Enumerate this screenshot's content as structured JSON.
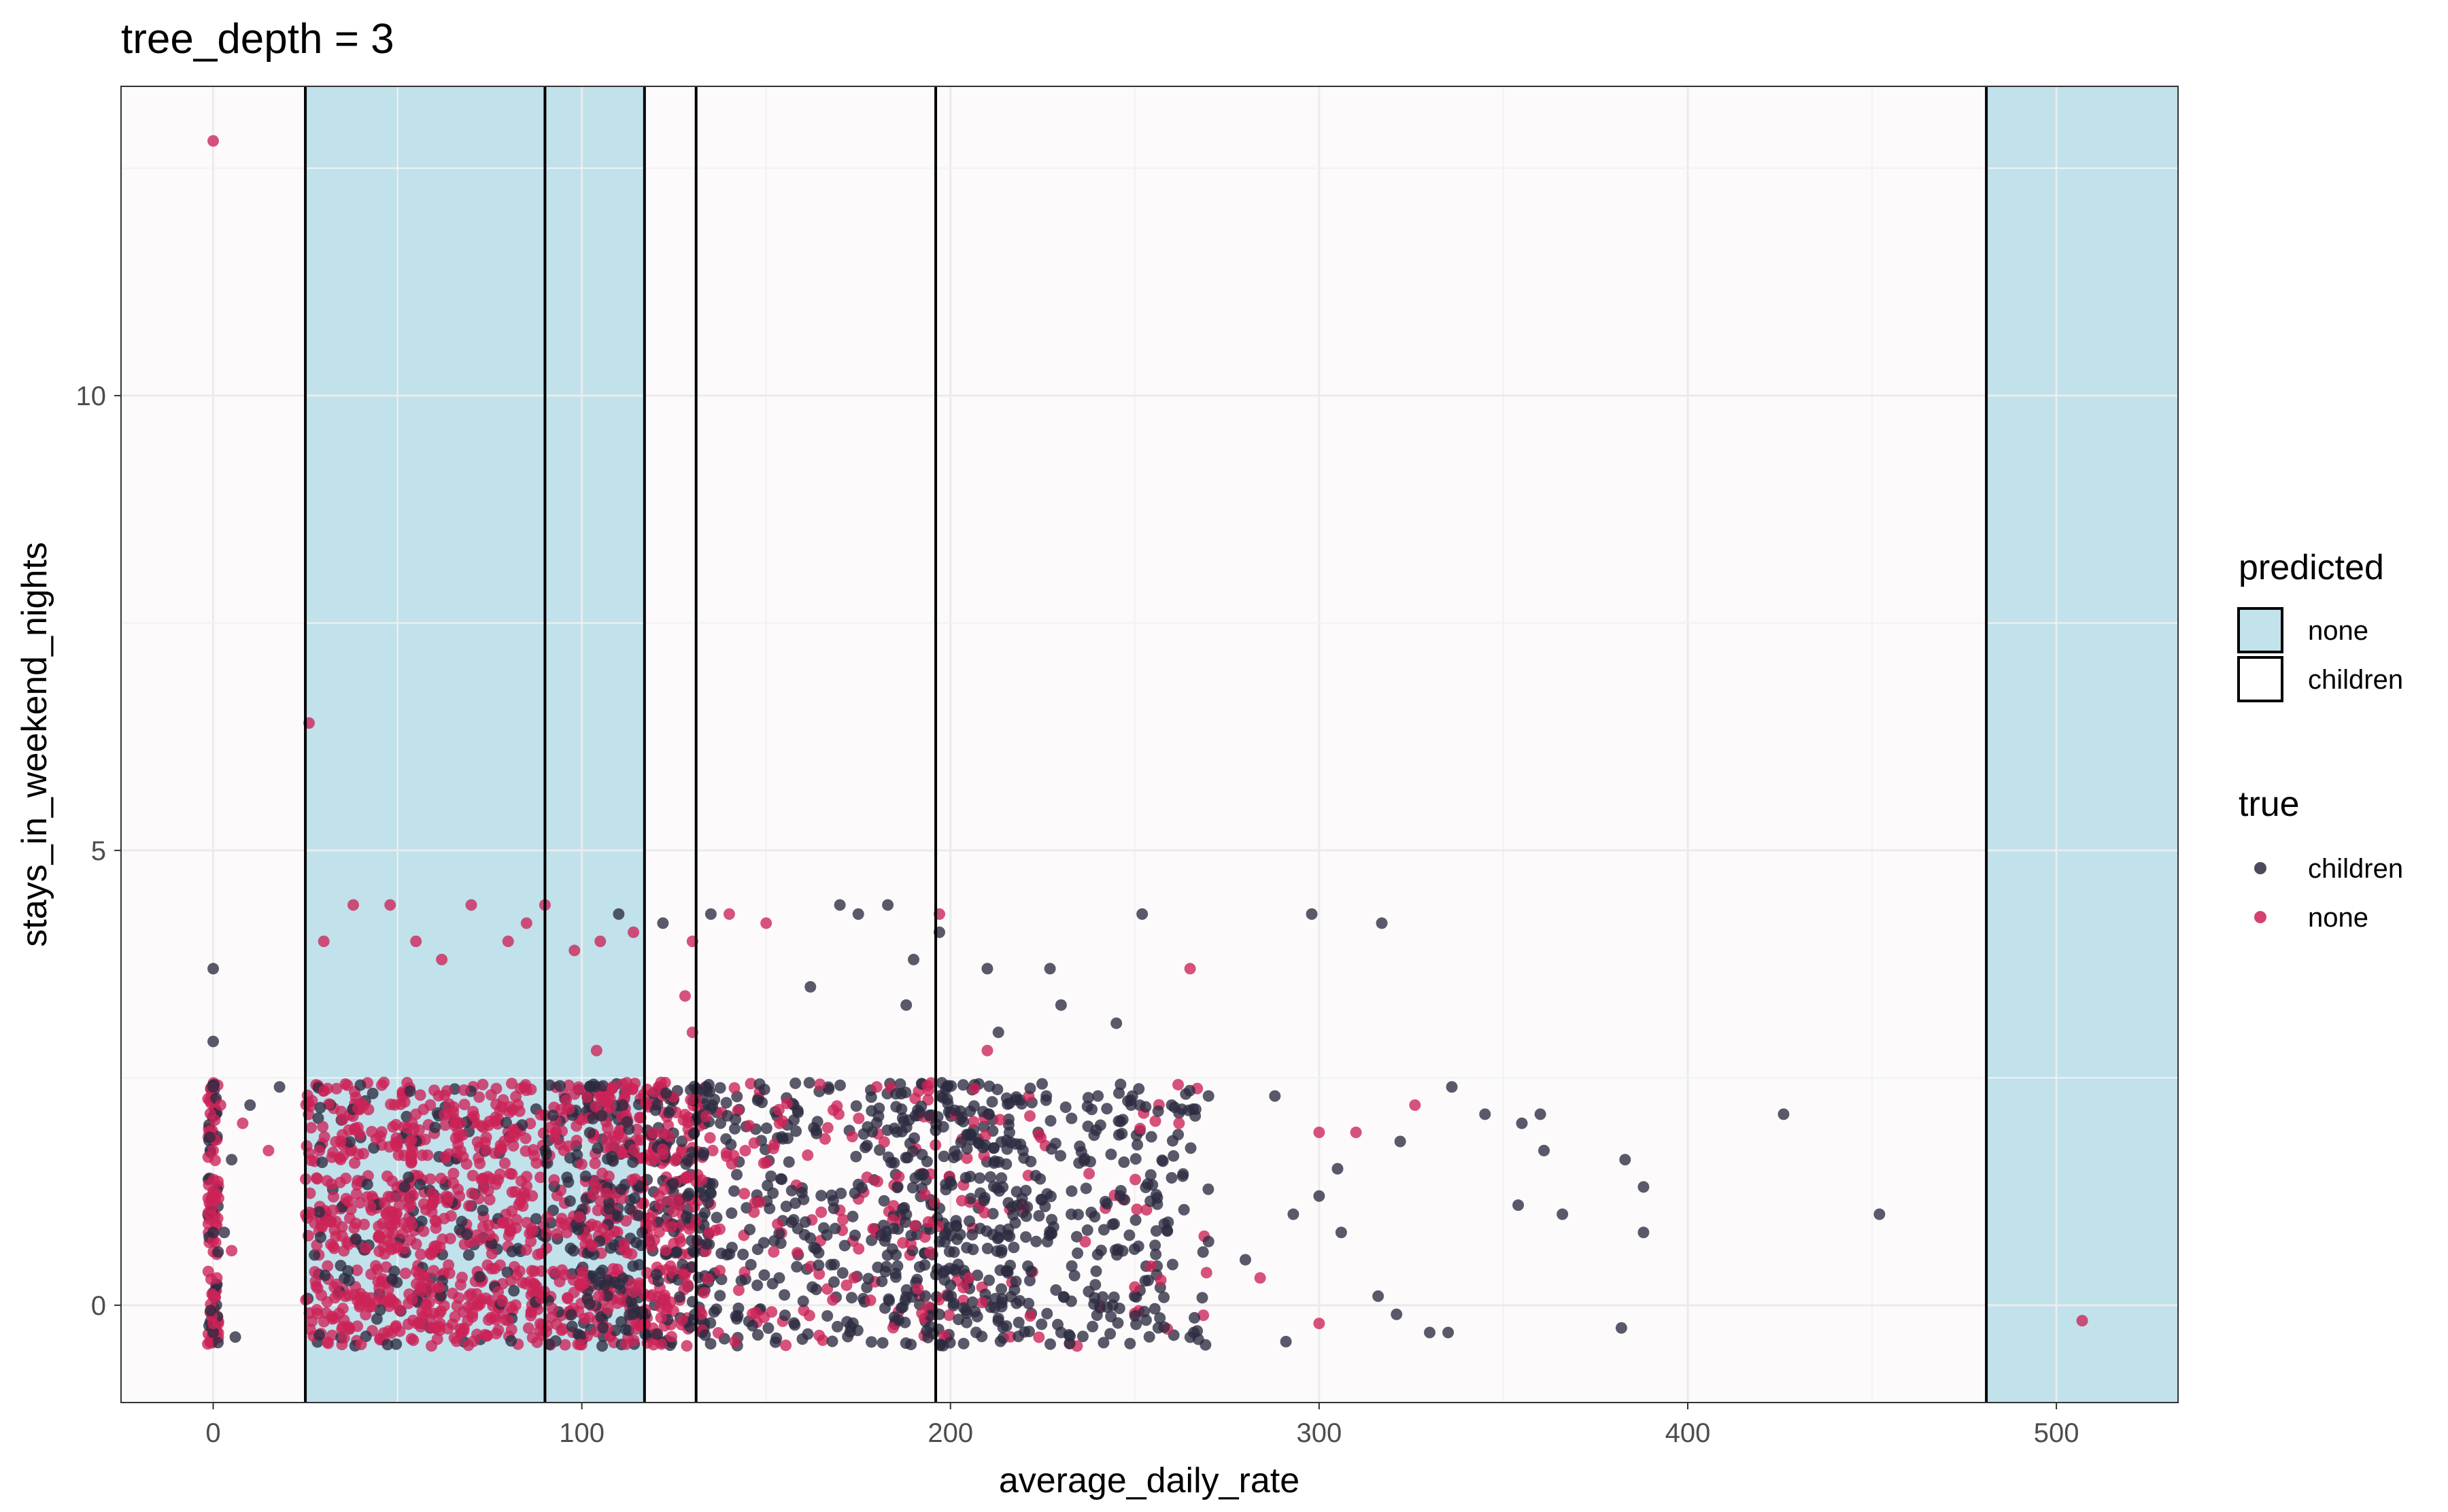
{
  "chart_data": {
    "type": "scatter",
    "title": "tree_depth = 3",
    "xlabel": "average_daily_rate",
    "ylabel": "stays_in_weekend_nights",
    "xlim": [
      -25,
      533
    ],
    "ylim": [
      -1.07,
      13.4
    ],
    "xticks": [
      0,
      100,
      200,
      300,
      400,
      500
    ],
    "yticks": [
      0,
      5,
      10
    ],
    "grid": true,
    "background": "#fcfafb",
    "split_lines": [
      25,
      90,
      117,
      131,
      196,
      481
    ],
    "regions": [
      {
        "predicted": "none",
        "x_start": 25,
        "x_end": 117
      },
      {
        "predicted": "children",
        "x_start": 117,
        "x_end": 481
      },
      {
        "predicted": "none",
        "x_start": 481,
        "x_end": 533
      }
    ],
    "legend": {
      "placement": "right",
      "predicted": {
        "title": "predicted",
        "items": [
          {
            "label": "none",
            "fill": "#add8e6"
          },
          {
            "label": "children",
            "fill": "#ffffff"
          }
        ]
      },
      "true": {
        "title": "true",
        "items": [
          {
            "label": "children",
            "color": "#2b2b40"
          },
          {
            "label": "none",
            "color": "#cc2257"
          }
        ]
      }
    },
    "points": {
      "none": [
        [
          0,
          12.8
        ],
        [
          26,
          6.4
        ],
        [
          0,
          0.1
        ],
        [
          0,
          -0.2
        ],
        [
          1,
          0.3
        ],
        [
          2,
          2.2
        ],
        [
          0,
          1.7
        ],
        [
          5,
          0.6
        ],
        [
          8,
          2.0
        ],
        [
          15,
          1.7
        ],
        [
          30,
          4.0
        ],
        [
          38,
          4.4
        ],
        [
          48,
          4.4
        ],
        [
          55,
          4.0
        ],
        [
          62,
          3.8
        ],
        [
          70,
          4.4
        ],
        [
          80,
          4.0
        ],
        [
          85,
          4.2
        ],
        [
          90,
          4.4
        ],
        [
          98,
          3.9
        ],
        [
          105,
          4.0
        ],
        [
          114,
          4.1
        ],
        [
          130,
          4.0
        ],
        [
          140,
          4.3
        ],
        [
          150,
          4.2
        ],
        [
          197,
          4.3
        ],
        [
          265,
          3.7
        ],
        [
          128,
          3.4
        ],
        [
          104,
          2.8
        ],
        [
          130,
          3.0
        ],
        [
          180,
          2.4
        ],
        [
          210,
          2.8
        ],
        [
          262,
          2.0
        ],
        [
          300,
          1.9
        ],
        [
          310,
          1.9
        ],
        [
          326,
          2.2
        ],
        [
          205,
          0.3
        ],
        [
          250,
          0.2
        ],
        [
          284,
          0.3
        ],
        [
          300,
          -0.2
        ],
        [
          507,
          -0.17
        ]
      ],
      "children": [
        [
          0,
          3.7
        ],
        [
          0,
          2.9
        ],
        [
          0,
          2.4
        ],
        [
          0,
          0.8
        ],
        [
          0,
          -0.3
        ],
        [
          5,
          1.6
        ],
        [
          10,
          2.2
        ],
        [
          18,
          2.4
        ],
        [
          3,
          0.8
        ],
        [
          6,
          -0.35
        ],
        [
          170,
          4.4
        ],
        [
          175,
          4.3
        ],
        [
          183,
          4.4
        ],
        [
          197,
          4.1
        ],
        [
          210,
          3.7
        ],
        [
          227,
          3.7
        ],
        [
          252,
          4.3
        ],
        [
          298,
          4.3
        ],
        [
          317,
          4.2
        ],
        [
          162,
          3.5
        ],
        [
          188,
          3.3
        ],
        [
          213,
          3.0
        ],
        [
          230,
          3.3
        ],
        [
          245,
          3.1
        ],
        [
          226,
          2.3
        ],
        [
          240,
          2.3
        ],
        [
          260,
          2.2
        ],
        [
          270,
          2.3
        ],
        [
          288,
          2.3
        ],
        [
          305,
          1.5
        ],
        [
          322,
          1.8
        ],
        [
          336,
          2.4
        ],
        [
          345,
          2.1
        ],
        [
          355,
          2.0
        ],
        [
          360,
          2.1
        ],
        [
          361,
          1.7
        ],
        [
          383,
          1.6
        ],
        [
          388,
          1.3
        ],
        [
          426,
          2.1
        ],
        [
          354,
          1.1
        ],
        [
          366,
          1.0
        ],
        [
          452,
          1.0
        ],
        [
          388,
          0.8
        ],
        [
          321,
          -0.1
        ],
        [
          316,
          0.1
        ],
        [
          330,
          -0.3
        ],
        [
          335,
          -0.3
        ],
        [
          382,
          -0.25
        ],
        [
          300,
          1.2
        ],
        [
          293,
          1.0
        ],
        [
          230,
          -0.3
        ],
        [
          266,
          -0.3
        ],
        [
          246,
          1.2
        ],
        [
          260,
          1.4
        ],
        [
          280,
          0.5
        ],
        [
          291,
          -0.4
        ],
        [
          306,
          0.8
        ],
        [
          244,
          0.0
        ],
        [
          270,
          0.7
        ],
        [
          216,
          1.9
        ],
        [
          249,
          2.2
        ],
        [
          190,
          3.8
        ],
        [
          135,
          4.3
        ],
        [
          122,
          4.2
        ],
        [
          110,
          4.3
        ]
      ]
    },
    "bands": [
      {
        "center": 2.0,
        "halfwidth": 0.45
      },
      {
        "center": 1.0,
        "halfwidth": 0.45
      },
      {
        "center": 0.0,
        "halfwidth": 0.45
      }
    ]
  }
}
